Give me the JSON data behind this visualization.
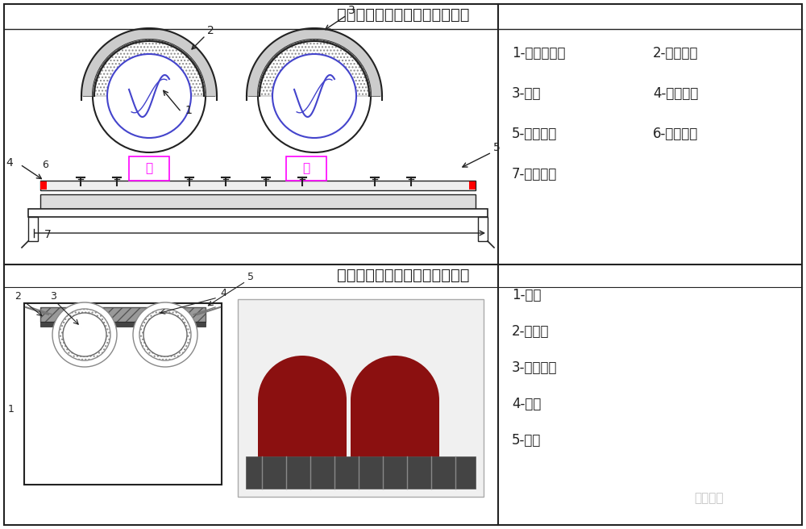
{
  "title1": "机房内管道弹簧支架安装示意图",
  "title2": "机房内橡胶管道吊架安装示意图",
  "legend1_items": [
    [
      "1-空调水管道",
      "2-绝缘木托"
    ],
    [
      "3-管卡",
      "4-型钢支架"
    ],
    [
      "5-弹簧支架",
      "6-限位钢板"
    ],
    [
      "7-满焊焊缝",
      ""
    ]
  ],
  "legend2_items": [
    "1-槽钢",
    "2-橡胶板",
    "3-空调水管",
    "4-冷桥",
    "5-钢板"
  ],
  "watermark": "机电人脉",
  "bg_color": "#ffffff",
  "border_color": "#333333",
  "line_color": "#222222",
  "hatch_color": "#555555",
  "blue_color": "#4444cc",
  "magenta_color": "#ff00ff",
  "red_color": "#ff0000"
}
